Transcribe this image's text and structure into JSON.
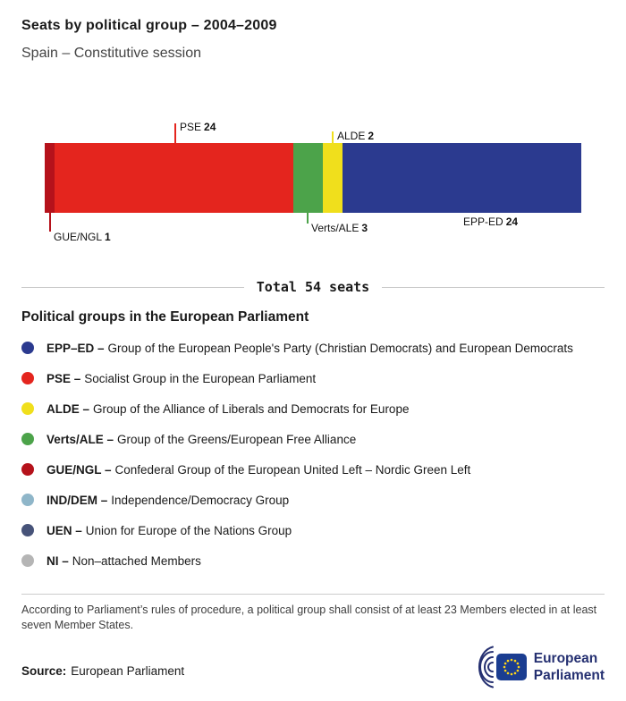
{
  "header": {
    "title": "Seats by political group – 2004–2009",
    "subtitle": "Spain – Constitutive session"
  },
  "chart_data": {
    "type": "bar",
    "variant": "horizontal-stacked",
    "title": "Seats by political group – 2004–2009",
    "subtitle": "Spain – Constitutive session",
    "total": 54,
    "total_label": "Total 54 seats",
    "categories": [
      "GUE/NGL",
      "PSE",
      "Verts/ALE",
      "ALDE",
      "EPP-ED"
    ],
    "values": [
      1,
      24,
      3,
      2,
      24
    ],
    "segments": [
      {
        "group": "GUE/NGL",
        "seats": 1,
        "color": "#b5121b"
      },
      {
        "group": "PSE",
        "seats": 24,
        "color": "#e4251e"
      },
      {
        "group": "Verts/ALE",
        "seats": 3,
        "color": "#4ca34a"
      },
      {
        "group": "ALDE",
        "seats": 2,
        "color": "#f0df1c"
      },
      {
        "group": "EPP-ED",
        "seats": 24,
        "color": "#2b3a8f"
      }
    ]
  },
  "legend": {
    "heading": "Political groups in the European Parliament",
    "items": [
      {
        "name": "EPP–ED –",
        "description": "Group of the European People's Party (Christian Democrats) and European Democrats",
        "color": "#2b3a8f"
      },
      {
        "name": "PSE –",
        "description": "Socialist Group in the European Parliament",
        "color": "#e4251e"
      },
      {
        "name": "ALDE –",
        "description": "Group of the Alliance of Liberals and Democrats for Europe",
        "color": "#f0df1c"
      },
      {
        "name": "Verts/ALE –",
        "description": "Group of the Greens/European Free Alliance",
        "color": "#4ca34a"
      },
      {
        "name": "GUE/NGL –",
        "description": "Confederal Group of the European United Left – Nordic Green Left",
        "color": "#b5121b"
      },
      {
        "name": "IND/DEM –",
        "description": "Independence/Democracy Group",
        "color": "#8fb6c9"
      },
      {
        "name": "UEN –",
        "description": "Union for Europe of the Nations Group",
        "color": "#475379"
      },
      {
        "name": "NI –",
        "description": "Non–attached Members",
        "color": "#b5b5b5"
      }
    ]
  },
  "footnote": "According to Parliament’s rules of procedure, a political group shall consist of at least 23 Members elected in at least seven Member States.",
  "source": {
    "label": "Source:",
    "text": "European Parliament"
  },
  "logo": {
    "line1": "European",
    "line2": "Parliament"
  }
}
